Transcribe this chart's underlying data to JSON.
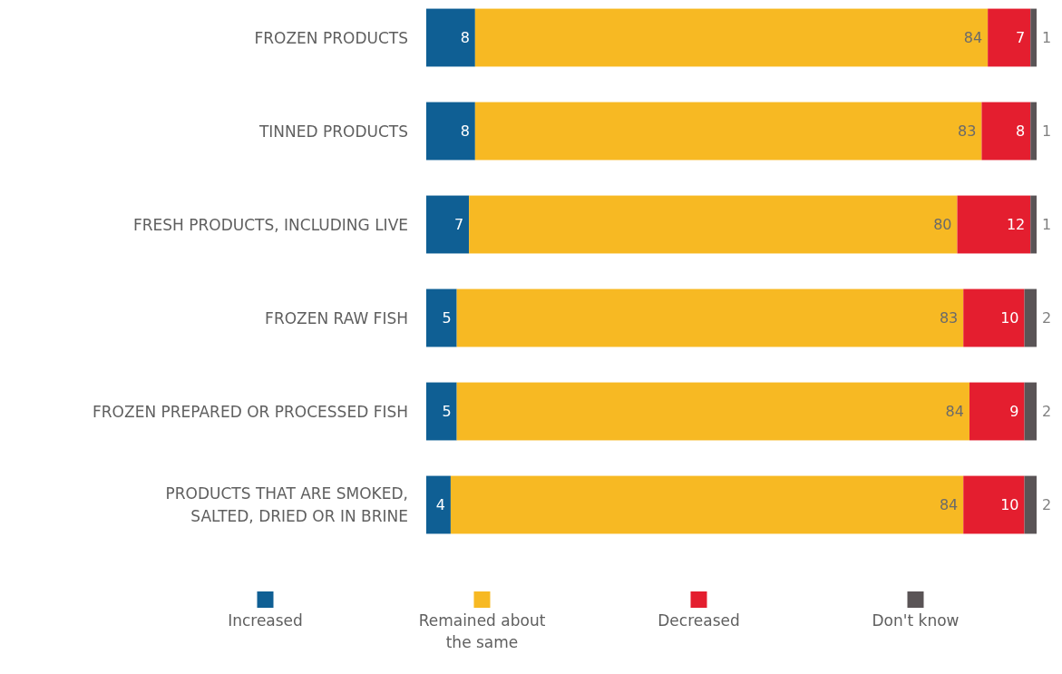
{
  "chart_data": {
    "type": "bar",
    "orientation": "horizontal",
    "stacked": true,
    "data_labels": true,
    "legend": "bottom",
    "categories": [
      "FROZEN PRODUCTS",
      "TINNED PRODUCTS",
      "FRESH PRODUCTS, INCLUDING LIVE",
      "FROZEN RAW FISH",
      "FROZEN PREPARED OR PROCESSED FISH",
      "PRODUCTS THAT ARE SMOKED, SALTED, DRIED OR IN BRINE"
    ],
    "series": [
      {
        "name": "Increased",
        "color": "#0f5f94",
        "values": [
          8,
          8,
          7,
          5,
          5,
          4
        ]
      },
      {
        "name": "Remained about the same",
        "color": "#f7b923",
        "values": [
          84,
          83,
          80,
          83,
          84,
          84
        ]
      },
      {
        "name": "Decreased",
        "color": "#e41e2f",
        "values": [
          7,
          8,
          12,
          10,
          9,
          10
        ]
      },
      {
        "name": "Don't know",
        "color": "#5a5456",
        "values": [
          1,
          1,
          1,
          2,
          2,
          2
        ]
      }
    ]
  }
}
